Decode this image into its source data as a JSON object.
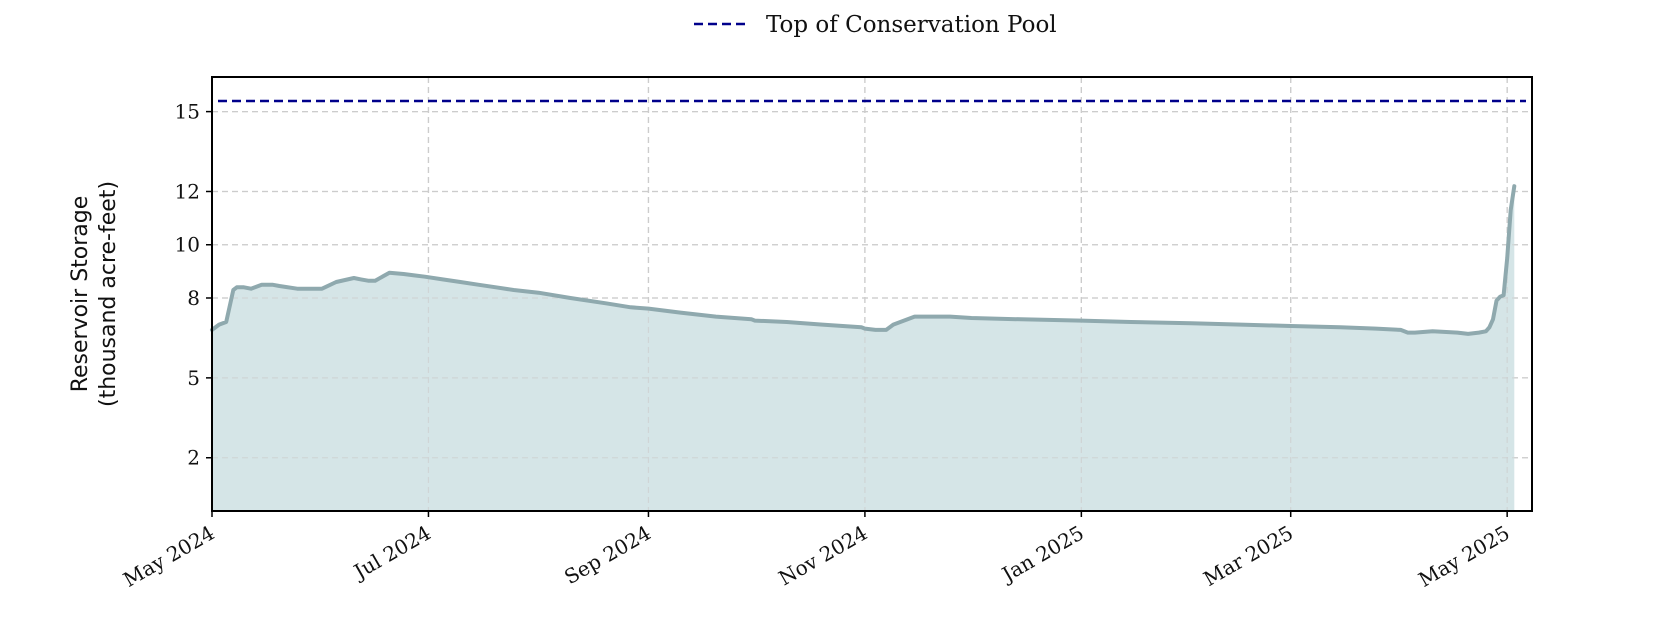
{
  "chart_data": {
    "type": "area",
    "ylabel_lines": [
      "Reservoir Storage",
      "(thousand acre-feet)"
    ],
    "x_range": [
      "2024-05-01",
      "2025-05-08"
    ],
    "ylim": [
      0,
      16.3
    ],
    "y_ticks": [
      2,
      5,
      8,
      10,
      12,
      15
    ],
    "y_tick_labels": [
      "2",
      "5",
      "8",
      "10",
      "12",
      "15"
    ],
    "x_ticks": [
      "2024-05-01",
      "2024-07-01",
      "2024-09-01",
      "2024-11-01",
      "2025-01-01",
      "2025-03-01",
      "2025-05-01"
    ],
    "x_tick_labels": [
      "May 2024",
      "Jul 2024",
      "Sep 2024",
      "Nov 2024",
      "Jan 2025",
      "Mar 2025",
      "May 2025"
    ],
    "grid": true,
    "legend_position": "top-center",
    "series": [
      {
        "name": "Reservoir Storage",
        "style": "area",
        "line_color": "#8fa9ae",
        "fill_color": "#d5e5e7",
        "x": [
          "2024-05-01",
          "2024-05-03",
          "2024-05-05",
          "2024-05-07",
          "2024-05-08",
          "2024-05-10",
          "2024-05-12",
          "2024-05-15",
          "2024-05-18",
          "2024-05-20",
          "2024-05-25",
          "2024-05-30",
          "2024-06-01",
          "2024-06-05",
          "2024-06-10",
          "2024-06-12",
          "2024-06-14",
          "2024-06-16",
          "2024-06-20",
          "2024-06-24",
          "2024-06-27",
          "2024-06-30",
          "2024-07-05",
          "2024-07-10",
          "2024-07-15",
          "2024-07-20",
          "2024-07-25",
          "2024-08-01",
          "2024-08-10",
          "2024-08-20",
          "2024-08-27",
          "2024-09-01",
          "2024-09-10",
          "2024-09-20",
          "2024-09-30",
          "2024-10-01",
          "2024-10-10",
          "2024-10-20",
          "2024-10-31",
          "2024-11-01",
          "2024-11-04",
          "2024-11-07",
          "2024-11-09",
          "2024-11-15",
          "2024-11-20",
          "2024-11-25",
          "2024-12-01",
          "2024-12-15",
          "2025-01-01",
          "2025-01-15",
          "2025-02-01",
          "2025-02-15",
          "2025-03-01",
          "2025-03-15",
          "2025-03-25",
          "2025-04-01",
          "2025-04-03",
          "2025-04-05",
          "2025-04-10",
          "2025-04-17",
          "2025-04-20",
          "2025-04-23",
          "2025-04-25",
          "2025-04-26",
          "2025-04-27",
          "2025-04-28",
          "2025-04-29",
          "2025-04-30",
          "2025-05-01",
          "2025-05-02",
          "2025-05-03"
        ],
        "values": [
          6.8,
          7.0,
          7.1,
          8.3,
          8.4,
          8.4,
          8.35,
          8.5,
          8.5,
          8.45,
          8.35,
          8.35,
          8.35,
          8.6,
          8.75,
          8.7,
          8.65,
          8.65,
          8.95,
          8.9,
          8.85,
          8.8,
          8.7,
          8.6,
          8.5,
          8.4,
          8.3,
          8.2,
          8.0,
          7.8,
          7.65,
          7.6,
          7.45,
          7.3,
          7.2,
          7.15,
          7.1,
          7.0,
          6.9,
          6.85,
          6.8,
          6.8,
          7.0,
          7.3,
          7.3,
          7.3,
          7.25,
          7.2,
          7.15,
          7.1,
          7.05,
          7.0,
          6.95,
          6.9,
          6.85,
          6.8,
          6.7,
          6.7,
          6.75,
          6.7,
          6.65,
          6.7,
          6.75,
          6.9,
          7.2,
          7.9,
          8.05,
          8.1,
          9.5,
          11.3,
          12.2
        ]
      },
      {
        "name": "Top of Conservation Pool",
        "style": "dashed",
        "line_color": "#00008b",
        "values": [
          15.4
        ]
      }
    ]
  }
}
